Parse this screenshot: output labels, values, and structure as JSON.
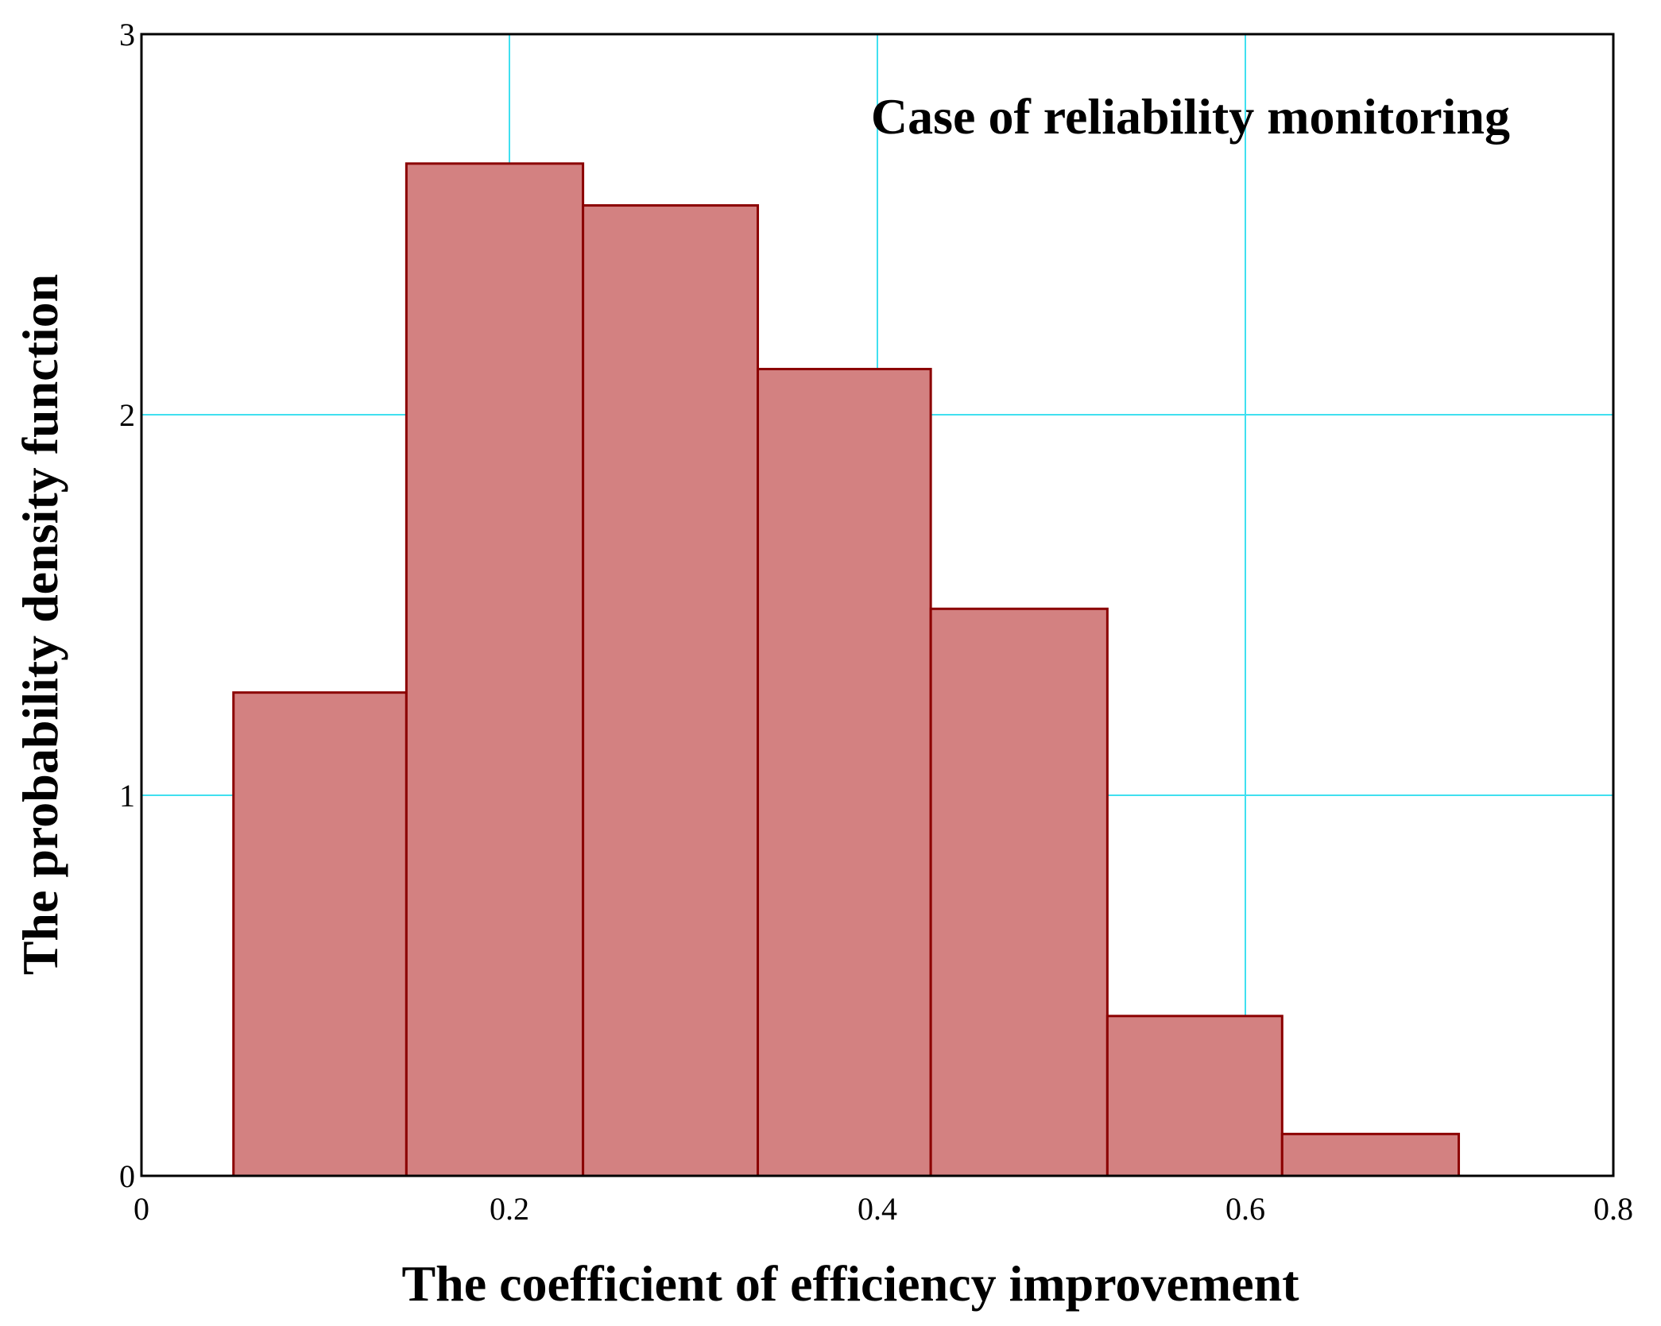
{
  "chart_data": {
    "type": "bar",
    "subtype": "histogram",
    "annotation": "Case of reliability monitoring",
    "xlabel": "The coefficient of efficiency improvement",
    "ylabel": "The probability density function",
    "xlim": [
      0,
      0.8
    ],
    "ylim": [
      0,
      3
    ],
    "x_ticks": [
      0,
      0.2,
      0.4,
      0.6,
      0.8
    ],
    "x_tick_labels": [
      "0",
      "0.2",
      "0.4",
      "0.6",
      "0.8"
    ],
    "y_ticks": [
      0,
      1,
      2,
      3
    ],
    "y_tick_labels": [
      "0",
      "1",
      "2",
      "3"
    ],
    "grid": true,
    "bins": [
      {
        "x0": 0.05,
        "x1": 0.144,
        "value": 1.27
      },
      {
        "x0": 0.144,
        "x1": 0.24,
        "value": 2.66
      },
      {
        "x0": 0.24,
        "x1": 0.335,
        "value": 2.55
      },
      {
        "x0": 0.335,
        "x1": 0.429,
        "value": 2.12
      },
      {
        "x0": 0.429,
        "x1": 0.525,
        "value": 1.49
      },
      {
        "x0": 0.525,
        "x1": 0.62,
        "value": 0.42
      },
      {
        "x0": 0.62,
        "x1": 0.716,
        "value": 0.11
      }
    ],
    "colors": {
      "bar_fill": "#d38181",
      "bar_edge": "#8b0000",
      "grid": "#40e0f0",
      "frame": "#000000"
    }
  }
}
